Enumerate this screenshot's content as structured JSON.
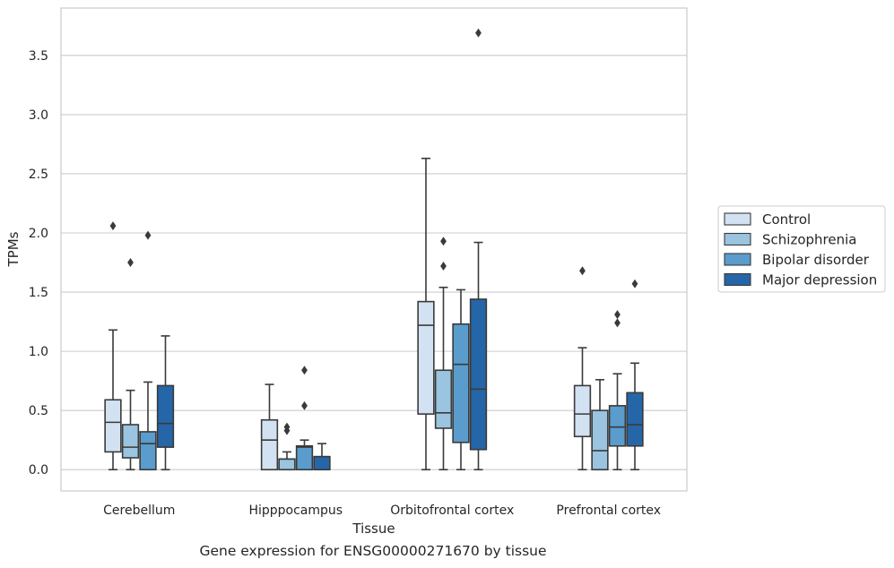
{
  "caption": "Gene expression for ENSG00000271670 by tissue",
  "chart_data": {
    "type": "boxplot",
    "xlabel": "Tissue",
    "ylabel": "TPMs",
    "ylim": [
      -0.18,
      3.9
    ],
    "yticks": [
      "0.0",
      "0.5",
      "1.0",
      "1.5",
      "2.0",
      "2.5",
      "3.0",
      "3.5"
    ],
    "categories": [
      "Cerebellum",
      "Hipppocampus",
      "Orbitofrontal cortex",
      "Prefrontal cortex"
    ],
    "grid": "horizontal",
    "legend_position": "right",
    "series": [
      {
        "name": "Control",
        "color": "#d2e2f2",
        "boxes": [
          {
            "min": 0.0,
            "q1": 0.15,
            "median": 0.4,
            "q3": 0.59,
            "max": 1.18,
            "outliers": [
              2.06
            ]
          },
          {
            "min": 0.0,
            "q1": 0.0,
            "median": 0.25,
            "q3": 0.42,
            "max": 0.72,
            "outliers": []
          },
          {
            "min": 0.0,
            "q1": 0.47,
            "median": 1.22,
            "q3": 1.42,
            "max": 2.63,
            "outliers": []
          },
          {
            "min": 0.0,
            "q1": 0.28,
            "median": 0.47,
            "q3": 0.71,
            "max": 1.03,
            "outliers": [
              1.68
            ]
          }
        ]
      },
      {
        "name": "Schizophrenia",
        "color": "#9ac4e0",
        "boxes": [
          {
            "min": 0.0,
            "q1": 0.1,
            "median": 0.19,
            "q3": 0.38,
            "max": 0.67,
            "outliers": [
              1.75
            ]
          },
          {
            "min": 0.0,
            "q1": 0.0,
            "median": 0.09,
            "q3": 0.09,
            "max": 0.15,
            "outliers": [
              0.33,
              0.36
            ]
          },
          {
            "min": 0.0,
            "q1": 0.35,
            "median": 0.48,
            "q3": 0.84,
            "max": 1.54,
            "outliers": [
              1.72,
              1.93
            ]
          },
          {
            "min": 0.0,
            "q1": 0.0,
            "median": 0.16,
            "q3": 0.5,
            "max": 0.76,
            "outliers": []
          }
        ]
      },
      {
        "name": "Bipolar disorder",
        "color": "#5a9ccc",
        "boxes": [
          {
            "min": 0.0,
            "q1": 0.0,
            "median": 0.22,
            "q3": 0.32,
            "max": 0.74,
            "outliers": [
              1.98
            ]
          },
          {
            "min": 0.0,
            "q1": 0.0,
            "median": 0.19,
            "q3": 0.2,
            "max": 0.25,
            "outliers": [
              0.54,
              0.84
            ]
          },
          {
            "min": 0.0,
            "q1": 0.23,
            "median": 0.89,
            "q3": 1.23,
            "max": 1.52,
            "outliers": []
          },
          {
            "min": 0.0,
            "q1": 0.2,
            "median": 0.36,
            "q3": 0.54,
            "max": 0.81,
            "outliers": [
              1.24,
              1.31
            ]
          }
        ]
      },
      {
        "name": "Major depression",
        "color": "#2566a8",
        "boxes": [
          {
            "min": 0.0,
            "q1": 0.19,
            "median": 0.39,
            "q3": 0.71,
            "max": 1.13,
            "outliers": []
          },
          {
            "min": 0.0,
            "q1": 0.0,
            "median": 0.11,
            "q3": 0.11,
            "max": 0.22,
            "outliers": []
          },
          {
            "min": 0.0,
            "q1": 0.17,
            "median": 0.68,
            "q3": 1.44,
            "max": 1.92,
            "outliers": [
              3.69
            ]
          },
          {
            "min": 0.0,
            "q1": 0.2,
            "median": 0.38,
            "q3": 0.65,
            "max": 0.9,
            "outliers": [
              1.57
            ]
          }
        ]
      }
    ]
  }
}
